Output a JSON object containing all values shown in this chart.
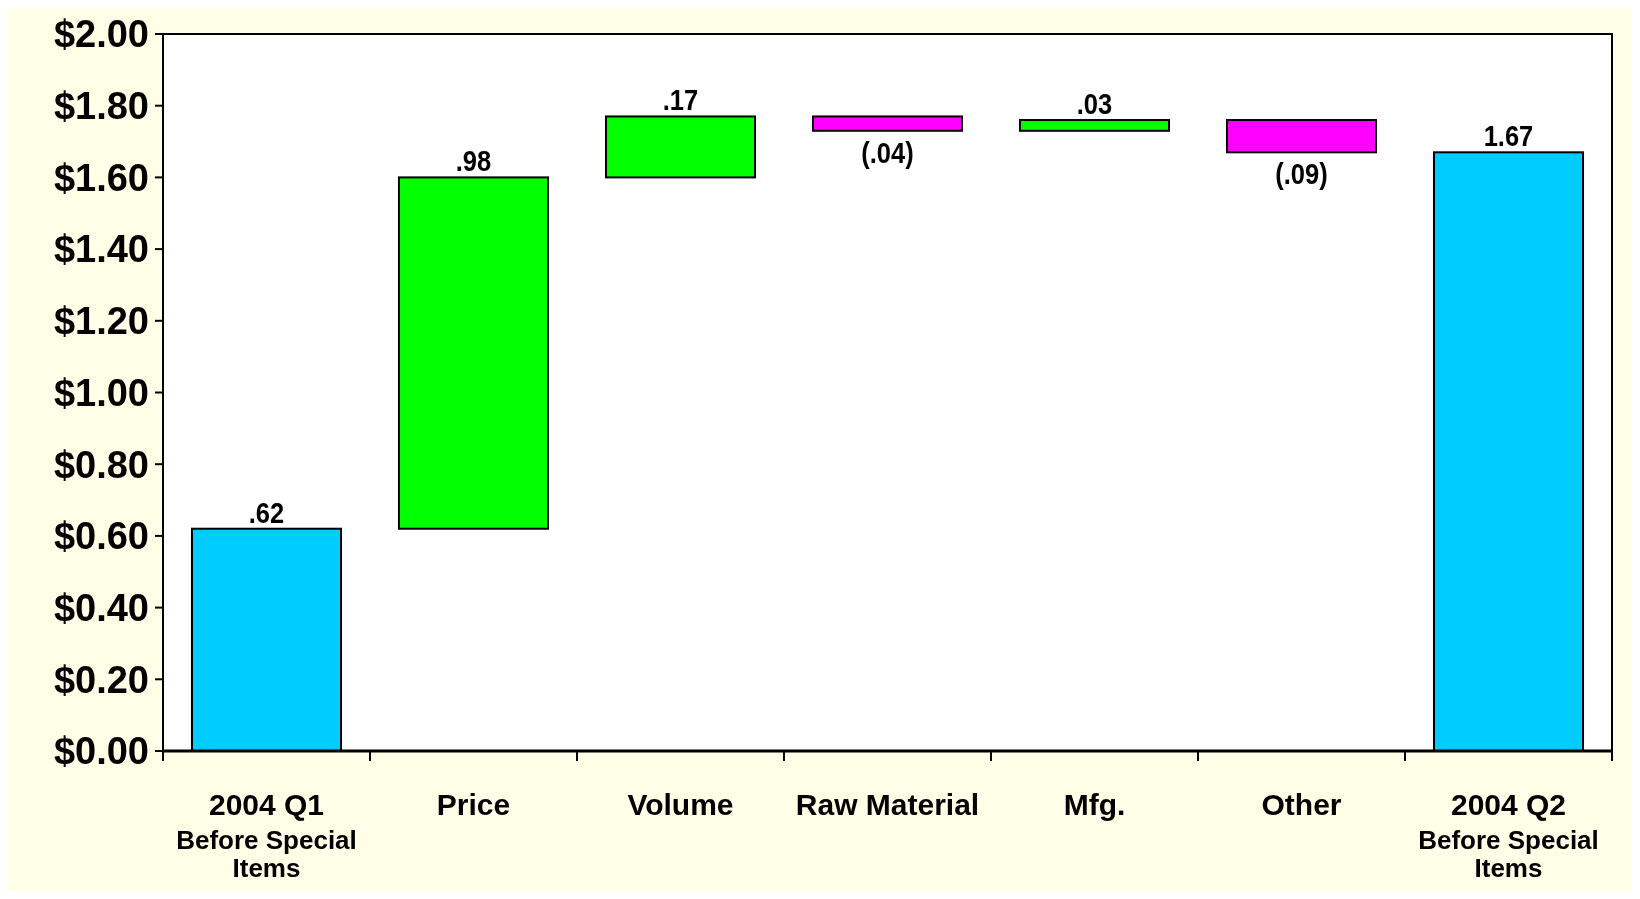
{
  "chart_data": {
    "type": "bar",
    "categories": [
      "2004 Q1\nBefore Special\nItems",
      "Price",
      "Volume",
      "Raw Material",
      "Mfg.",
      "Other",
      "2004 Q2\nBefore Special\nItems"
    ],
    "values": [
      0.62,
      0.98,
      0.17,
      -0.04,
      0.03,
      -0.09,
      1.67
    ],
    "base": [
      0,
      0.62,
      1.6,
      1.77,
      1.73,
      1.76,
      0
    ],
    "colors": [
      "#00ccff",
      "#00ff00",
      "#00ff00",
      "#ff00ff",
      "#00ff00",
      "#ff00ff",
      "#00ccff"
    ],
    "value_labels": [
      ".62",
      ".98",
      ".17",
      "(.04)",
      ".03",
      "(.09)",
      "1.67"
    ],
    "ylim": [
      0,
      2
    ],
    "yticks": [
      {
        "value": 0,
        "label": "$0.00"
      },
      {
        "value": 0.2,
        "label": "$0.20"
      },
      {
        "value": 0.4,
        "label": "$0.40"
      },
      {
        "value": 0.6,
        "label": "$0.60"
      },
      {
        "value": 0.8,
        "label": "$0.80"
      },
      {
        "value": 1,
        "label": "$1.00"
      },
      {
        "value": 1.2,
        "label": "$1.20"
      },
      {
        "value": 1.4,
        "label": "$1.40"
      },
      {
        "value": 1.6,
        "label": "$1.60"
      },
      {
        "value": 1.8,
        "label": "$1.80"
      },
      {
        "value": 2,
        "label": "$2.00"
      }
    ]
  }
}
